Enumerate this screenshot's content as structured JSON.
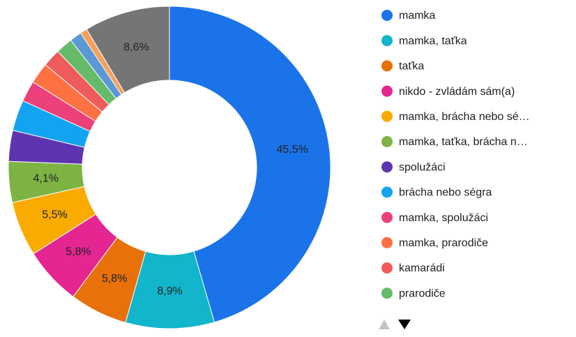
{
  "chart_data": {
    "type": "donut",
    "categories": [
      "mamka",
      "mamka, taťka",
      "taťka",
      "nikdo - zvládám sám(a)",
      "mamka, brácha nebo sé…",
      "mamka, taťka, brácha n…",
      "spolužáci",
      "brácha nebo ségra",
      "mamka, spolužáci",
      "mamka, prarodiče",
      "kamarádi",
      "prarodiče",
      null,
      null,
      null
    ],
    "values": [
      45.5,
      8.9,
      5.8,
      5.8,
      5.5,
      4.1,
      3.1,
      3.1,
      2.1,
      2.1,
      1.8,
      1.7,
      1.2,
      0.7,
      8.6
    ],
    "value_labels": [
      "45,5%",
      "8,9%",
      "5,8%",
      "5,8%",
      "5,5%",
      "4,1%",
      null,
      null,
      null,
      null,
      null,
      null,
      null,
      null,
      "8,6%"
    ],
    "colors": [
      "#1a73e8",
      "#12b5cb",
      "#e8710a",
      "#e52592",
      "#f9ab00",
      "#7cb342",
      "#5e35b1",
      "#12a4f0",
      "#ec407a",
      "#ff7043",
      "#ef5b5b",
      "#66bb6a",
      "#5c97d6",
      "#f6a05a",
      "#757575"
    ]
  }
}
